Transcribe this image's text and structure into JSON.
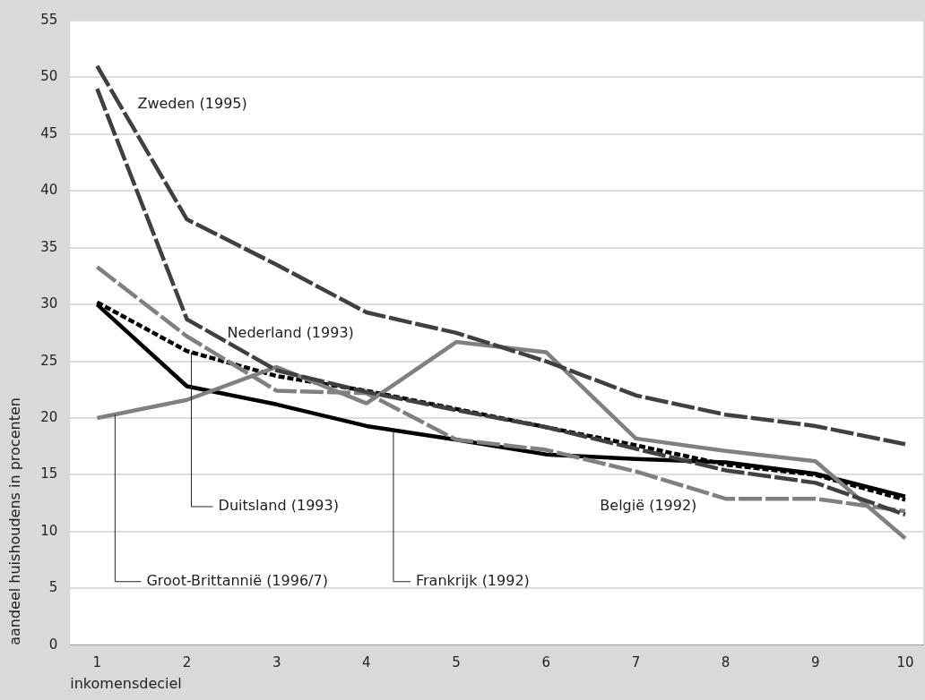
{
  "chart_data": {
    "type": "line",
    "xlabel": "inkomensdeciel",
    "ylabel": "aandeel huishoudens in procenten",
    "x": [
      1,
      2,
      3,
      4,
      5,
      6,
      7,
      8,
      9,
      10
    ],
    "series": [
      {
        "name": "Zweden (1995)",
        "color": "#404040",
        "line_style": "dashed",
        "values": [
          51,
          37.5,
          33.5,
          29.3,
          27.5,
          25,
          22,
          20.3,
          19.3,
          17.7
        ]
      },
      {
        "name": "Nederland (1993)",
        "color": "#404040",
        "line_style": "dashed",
        "values": [
          49,
          28.7,
          24.2,
          22.3,
          20.7,
          19.2,
          17.3,
          15.4,
          14.3,
          11.5
        ]
      },
      {
        "name": "België (1992)",
        "color": "#808080",
        "line_style": "dashed",
        "values": [
          33.3,
          27.2,
          22.4,
          22.2,
          18.1,
          17.2,
          15.3,
          12.9,
          12.9,
          11.8
        ]
      },
      {
        "name": "Groot-Brittannië (1996/7)",
        "color": "#808080",
        "line_style": "solid",
        "values": [
          20,
          21.6,
          24.5,
          21.3,
          26.7,
          25.8,
          18.2,
          17.1,
          16.2,
          9.4
        ]
      },
      {
        "name": "Duitsland (1993)",
        "color": "#000000",
        "line_style": "dotted",
        "values": [
          30.2,
          25.9,
          23.7,
          22.4,
          20.8,
          19.2,
          17.6,
          15.9,
          15,
          12.8
        ]
      },
      {
        "name": "Frankrijk (1992)",
        "color": "#000000",
        "line_style": "solid",
        "values": [
          30,
          22.8,
          21.2,
          19.3,
          18.1,
          16.8,
          16.4,
          16.1,
          15.1,
          13.1
        ]
      }
    ],
    "xlim": [
      0.7,
      10.2
    ],
    "xticks": [
      1,
      2,
      3,
      4,
      5,
      6,
      7,
      8,
      9,
      10
    ],
    "ylim": [
      0,
      55
    ],
    "yticks": [
      0,
      5,
      10,
      15,
      20,
      25,
      30,
      35,
      40,
      45,
      50,
      55
    ],
    "grid": "y",
    "legend": false,
    "marker": "none"
  }
}
